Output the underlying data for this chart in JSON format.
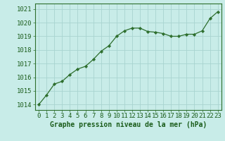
{
  "x": [
    0,
    1,
    2,
    3,
    4,
    5,
    6,
    7,
    8,
    9,
    10,
    11,
    12,
    13,
    14,
    15,
    16,
    17,
    18,
    19,
    20,
    21,
    22,
    23
  ],
  "y": [
    1014.0,
    1014.7,
    1015.5,
    1015.7,
    1016.2,
    1016.6,
    1016.8,
    1017.3,
    1017.9,
    1018.3,
    1019.0,
    1019.4,
    1019.6,
    1019.6,
    1019.35,
    1019.3,
    1019.2,
    1019.0,
    1019.0,
    1019.15,
    1019.15,
    1019.4,
    1020.3,
    1020.8
  ],
  "line_color": "#2d6e2d",
  "marker": "D",
  "marker_size": 2.2,
  "background_color": "#c8ece8",
  "grid_color": "#a8d4d0",
  "ylabel_ticks": [
    1014,
    1015,
    1016,
    1017,
    1018,
    1019,
    1020,
    1021
  ],
  "xlabel": "Graphe pression niveau de la mer (hPa)",
  "ylim": [
    1013.6,
    1021.4
  ],
  "xlim": [
    -0.5,
    23.5
  ],
  "label_color": "#1a5c1a",
  "xlabel_fontsize": 7.0,
  "tick_fontsize": 6.5
}
